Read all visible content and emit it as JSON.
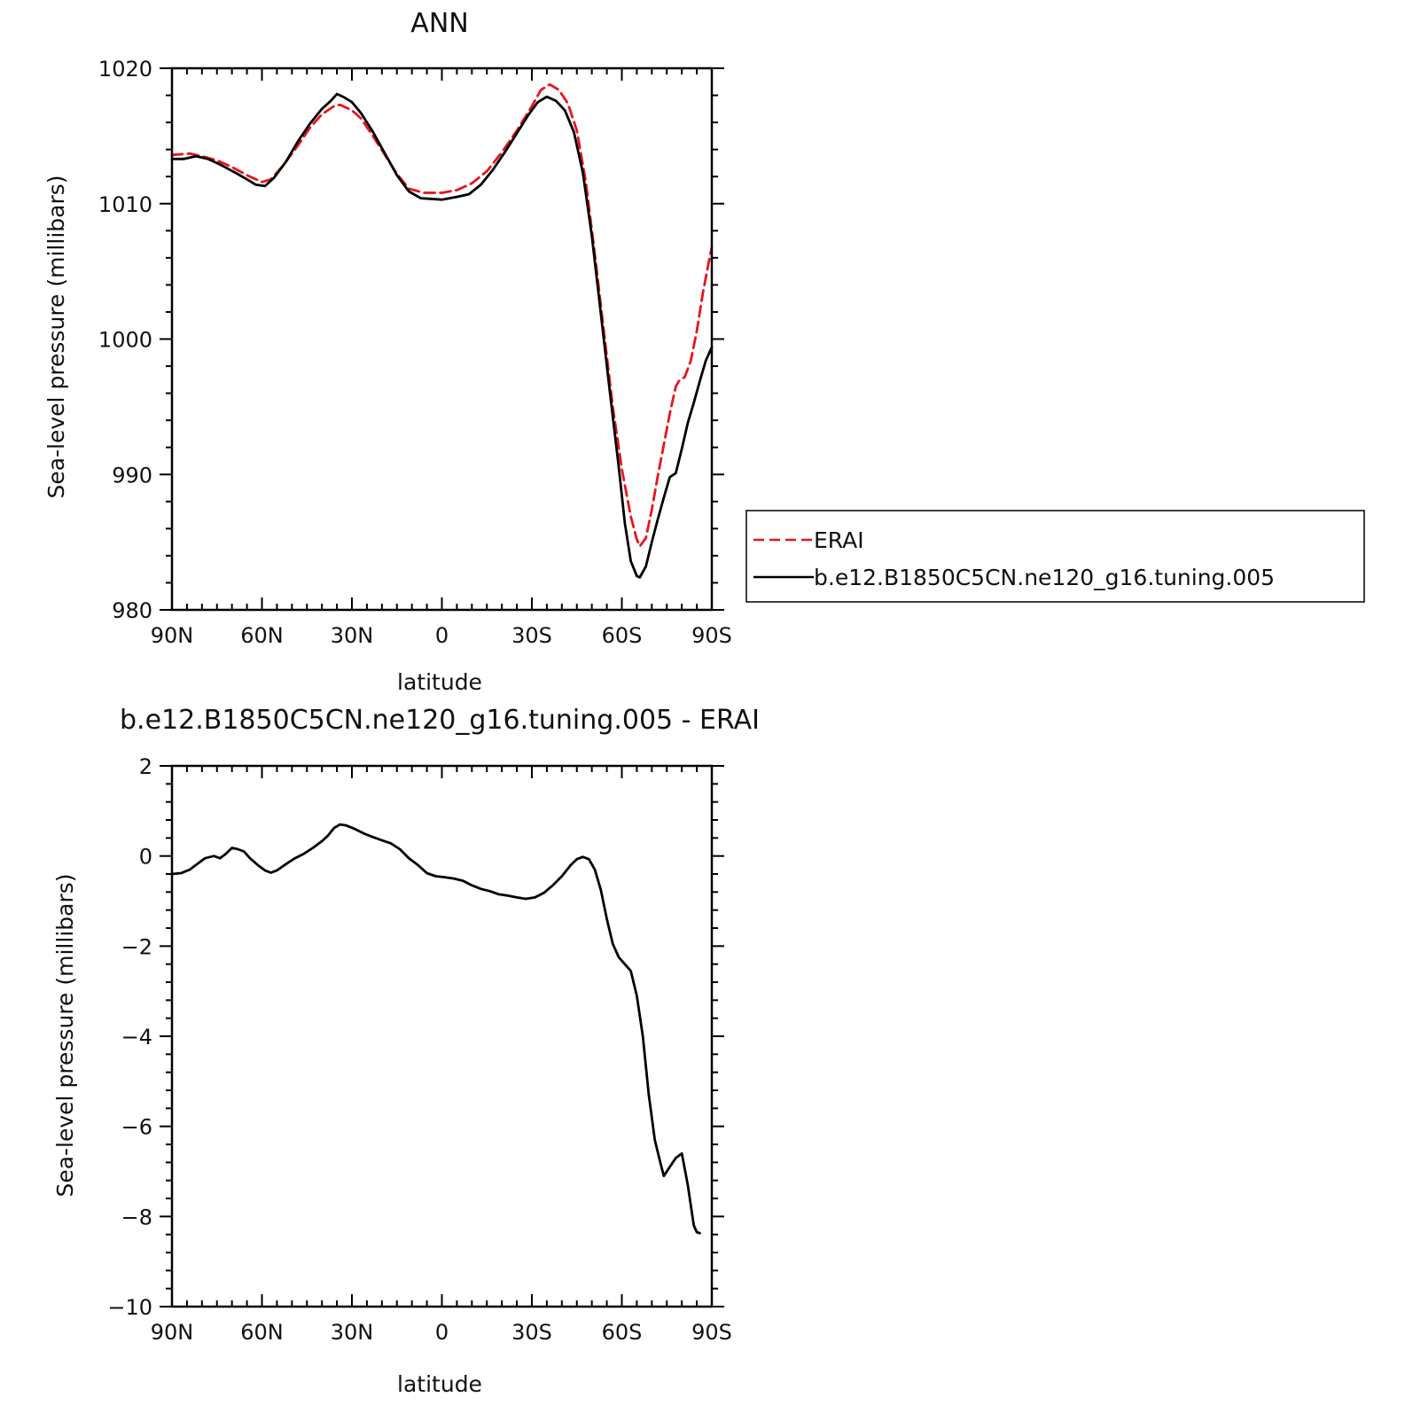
{
  "chart_data": [
    {
      "type": "line",
      "title": "ANN",
      "xlabel": "latitude",
      "ylabel": "Sea-level pressure (millibars)",
      "xlim": [
        90,
        -90
      ],
      "ylim": [
        980,
        1020
      ],
      "x_ticks": [
        90,
        60,
        30,
        0,
        -30,
        -60,
        -90
      ],
      "x_tick_labels": [
        "90N",
        "60N",
        "30N",
        "0",
        "30S",
        "60S",
        "90S"
      ],
      "y_ticks": [
        980,
        990,
        1000,
        1010,
        1020
      ],
      "y_tick_labels": [
        "980",
        "990",
        "1000",
        "1010",
        "1020"
      ],
      "grid": false,
      "legend": {
        "placement": "outside-right"
      },
      "series": [
        {
          "name": "ERAI",
          "color": "#e8141c",
          "dash": "dashed",
          "points": [
            [
              90,
              1013.6
            ],
            [
              84,
              1013.7
            ],
            [
              80,
              1013.5
            ],
            [
              75,
              1013.2
            ],
            [
              70,
              1012.7
            ],
            [
              65,
              1012.1
            ],
            [
              60,
              1011.6
            ],
            [
              57,
              1011.8
            ],
            [
              53,
              1012.8
            ],
            [
              48,
              1014.3
            ],
            [
              44,
              1015.6
            ],
            [
              40,
              1016.6
            ],
            [
              36,
              1017.2
            ],
            [
              34,
              1017.3
            ],
            [
              30,
              1016.9
            ],
            [
              27,
              1016.3
            ],
            [
              23,
              1015.0
            ],
            [
              19,
              1013.6
            ],
            [
              15,
              1012.2
            ],
            [
              11,
              1011.1
            ],
            [
              6,
              1010.8
            ],
            [
              0,
              1010.8
            ],
            [
              -5,
              1011.0
            ],
            [
              -10,
              1011.5
            ],
            [
              -15,
              1012.4
            ],
            [
              -20,
              1013.8
            ],
            [
              -25,
              1015.4
            ],
            [
              -30,
              1017.2
            ],
            [
              -33,
              1018.4
            ],
            [
              -36,
              1018.8
            ],
            [
              -39,
              1018.4
            ],
            [
              -42,
              1017.4
            ],
            [
              -45,
              1015.4
            ],
            [
              -48,
              1011.6
            ],
            [
              -51,
              1006.3
            ],
            [
              -54,
              1000.6
            ],
            [
              -57,
              995.0
            ],
            [
              -60,
              990.4
            ],
            [
              -63,
              986.9
            ],
            [
              -65,
              985.2
            ],
            [
              -66,
              984.7
            ],
            [
              -68,
              985.3
            ],
            [
              -70,
              987.4
            ],
            [
              -72,
              989.9
            ],
            [
              -74,
              992.2
            ],
            [
              -76,
              994.5
            ],
            [
              -78,
              996.5
            ],
            [
              -79,
              996.9
            ],
            [
              -81,
              997.2
            ],
            [
              -83,
              998.4
            ],
            [
              -85,
              1000.6
            ],
            [
              -87,
              1003.4
            ],
            [
              -89,
              1005.7
            ],
            [
              -90,
              1006.8
            ]
          ]
        },
        {
          "name": "b.e12.B1850C5CN.ne120_g16.tuning.005",
          "color": "#000000",
          "dash": "solid",
          "points": [
            [
              90,
              1013.3
            ],
            [
              86,
              1013.3
            ],
            [
              82,
              1013.5
            ],
            [
              78,
              1013.3
            ],
            [
              74,
              1012.9
            ],
            [
              69,
              1012.3
            ],
            [
              65,
              1011.8
            ],
            [
              62,
              1011.4
            ],
            [
              59,
              1011.3
            ],
            [
              56,
              1011.9
            ],
            [
              52,
              1013.1
            ],
            [
              48,
              1014.6
            ],
            [
              44,
              1015.9
            ],
            [
              40,
              1017.0
            ],
            [
              37,
              1017.6
            ],
            [
              35,
              1018.1
            ],
            [
              33,
              1017.9
            ],
            [
              30,
              1017.5
            ],
            [
              27,
              1016.7
            ],
            [
              23,
              1015.3
            ],
            [
              19,
              1013.7
            ],
            [
              15,
              1012.1
            ],
            [
              11,
              1010.9
            ],
            [
              7,
              1010.4
            ],
            [
              0,
              1010.3
            ],
            [
              -5,
              1010.5
            ],
            [
              -9,
              1010.7
            ],
            [
              -13,
              1011.4
            ],
            [
              -17,
              1012.5
            ],
            [
              -21,
              1013.8
            ],
            [
              -25,
              1015.2
            ],
            [
              -29,
              1016.6
            ],
            [
              -32,
              1017.5
            ],
            [
              -35,
              1017.9
            ],
            [
              -38,
              1017.6
            ],
            [
              -41,
              1016.9
            ],
            [
              -44,
              1015.3
            ],
            [
              -47,
              1012.3
            ],
            [
              -50,
              1007.6
            ],
            [
              -53,
              1001.9
            ],
            [
              -56,
              996.1
            ],
            [
              -59,
              990.5
            ],
            [
              -61,
              986.4
            ],
            [
              -63,
              983.6
            ],
            [
              -65,
              982.5
            ],
            [
              -66,
              982.4
            ],
            [
              -68,
              983.2
            ],
            [
              -70,
              985.0
            ],
            [
              -72,
              986.7
            ],
            [
              -74,
              988.3
            ],
            [
              -76,
              989.8
            ],
            [
              -78,
              990.1
            ],
            [
              -80,
              991.9
            ],
            [
              -82,
              993.8
            ],
            [
              -84,
              995.3
            ],
            [
              -86,
              996.9
            ],
            [
              -88,
              998.4
            ],
            [
              -90,
              999.4
            ]
          ]
        }
      ]
    },
    {
      "type": "line",
      "title": "b.e12.B1850C5CN.ne120_g16.tuning.005 - ERAI",
      "xlabel": "latitude",
      "ylabel": "Sea-level pressure (millibars)",
      "xlim": [
        90,
        -90
      ],
      "ylim": [
        -10,
        2
      ],
      "x_ticks": [
        90,
        60,
        30,
        0,
        -30,
        -60,
        -90
      ],
      "x_tick_labels": [
        "90N",
        "60N",
        "30N",
        "0",
        "30S",
        "60S",
        "90S"
      ],
      "y_ticks": [
        -10,
        -8,
        -6,
        -4,
        -2,
        0,
        2
      ],
      "y_tick_labels": [
        "−10",
        "−8",
        "−6",
        "−4",
        "−2",
        "0",
        "2"
      ],
      "grid": false,
      "series": [
        {
          "color": "#000000",
          "dash": "solid",
          "points": [
            [
              90,
              -0.4
            ],
            [
              87,
              -0.38
            ],
            [
              84,
              -0.3
            ],
            [
              81,
              -0.15
            ],
            [
              79,
              -0.05
            ],
            [
              76,
              0.0
            ],
            [
              74,
              -0.05
            ],
            [
              72,
              0.05
            ],
            [
              70,
              0.18
            ],
            [
              68,
              0.15
            ],
            [
              66,
              0.1
            ],
            [
              64,
              -0.05
            ],
            [
              61,
              -0.22
            ],
            [
              59,
              -0.32
            ],
            [
              57,
              -0.37
            ],
            [
              55,
              -0.32
            ],
            [
              52,
              -0.18
            ],
            [
              49,
              -0.05
            ],
            [
              46,
              0.05
            ],
            [
              43,
              0.18
            ],
            [
              40,
              0.33
            ],
            [
              38,
              0.45
            ],
            [
              36,
              0.62
            ],
            [
              34,
              0.7
            ],
            [
              32,
              0.68
            ],
            [
              29,
              0.6
            ],
            [
              26,
              0.5
            ],
            [
              23,
              0.42
            ],
            [
              20,
              0.35
            ],
            [
              17,
              0.28
            ],
            [
              14,
              0.15
            ],
            [
              11,
              -0.05
            ],
            [
              8,
              -0.2
            ],
            [
              5,
              -0.38
            ],
            [
              2,
              -0.45
            ],
            [
              -1,
              -0.47
            ],
            [
              -4,
              -0.5
            ],
            [
              -7,
              -0.55
            ],
            [
              -10,
              -0.65
            ],
            [
              -13,
              -0.73
            ],
            [
              -16,
              -0.78
            ],
            [
              -19,
              -0.85
            ],
            [
              -22,
              -0.88
            ],
            [
              -25,
              -0.92
            ],
            [
              -28,
              -0.95
            ],
            [
              -31,
              -0.92
            ],
            [
              -34,
              -0.82
            ],
            [
              -37,
              -0.65
            ],
            [
              -40,
              -0.45
            ],
            [
              -43,
              -0.2
            ],
            [
              -45,
              -0.07
            ],
            [
              -47,
              -0.02
            ],
            [
              -49,
              -0.07
            ],
            [
              -51,
              -0.3
            ],
            [
              -53,
              -0.75
            ],
            [
              -55,
              -1.4
            ],
            [
              -57,
              -1.95
            ],
            [
              -59,
              -2.25
            ],
            [
              -61,
              -2.4
            ],
            [
              -63,
              -2.55
            ],
            [
              -65,
              -3.1
            ],
            [
              -67,
              -4.0
            ],
            [
              -69,
              -5.3
            ],
            [
              -71,
              -6.3
            ],
            [
              -73,
              -6.85
            ],
            [
              -74,
              -7.1
            ],
            [
              -76,
              -6.9
            ],
            [
              -78,
              -6.7
            ],
            [
              -80,
              -6.6
            ],
            [
              -82,
              -7.3
            ],
            [
              -84,
              -8.2
            ],
            [
              -85,
              -8.35
            ],
            [
              -86,
              -8.37
            ]
          ]
        }
      ]
    }
  ]
}
